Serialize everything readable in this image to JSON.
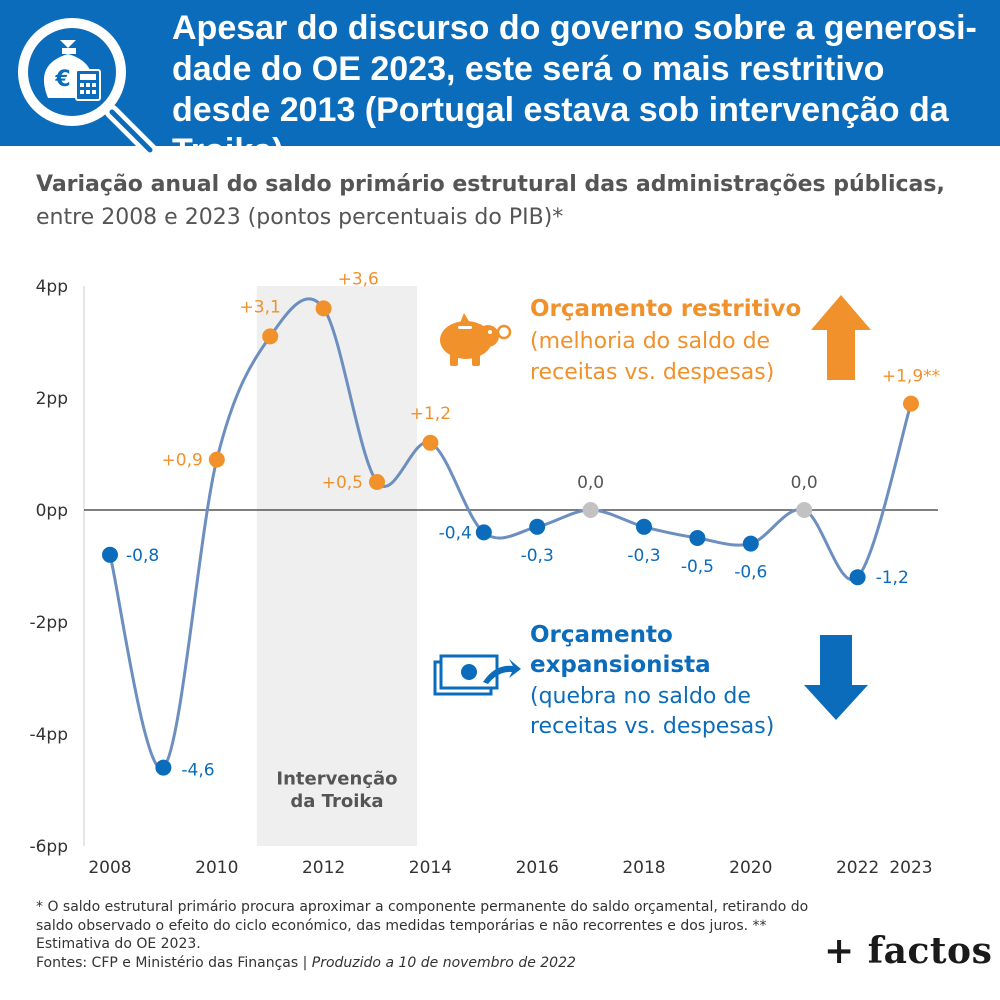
{
  "header": {
    "title": "Apesar do discurso do governo sobre a generosi-dade do OE 2023, este será o mais restritivo desde 2013 (Portugal estava sob intervenção da Troika)"
  },
  "subtitle": {
    "bold": "Variação anual do saldo primário estrutural das administrações públicas,",
    "regular": "entre 2008 e 2023 (pontos percentuais do PIB)*"
  },
  "chart_data": {
    "type": "line",
    "x": [
      2008,
      2009,
      2010,
      2011,
      2012,
      2013,
      2014,
      2015,
      2016,
      2017,
      2018,
      2019,
      2020,
      2021,
      2022,
      2023
    ],
    "series": [
      {
        "values": [
          -0.8,
          -4.6,
          0.9,
          3.1,
          3.6,
          0.5,
          1.2,
          -0.4,
          -0.3,
          0.0,
          -0.3,
          -0.5,
          -0.6,
          0.0,
          -1.2,
          1.9
        ]
      }
    ],
    "data_labels": [
      "-0,8",
      "-4,6",
      "+0,9",
      "+3,1",
      "+3,6",
      "+0,5",
      "+1,2",
      "-0,4",
      "-0,3",
      "0,0",
      "-0,3",
      "-0,5",
      "-0,6",
      "0,0",
      "-1,2",
      "+1,9**"
    ],
    "x_tick_labels": [
      {
        "x": 2008,
        "label": "2008"
      },
      {
        "x": 2010,
        "label": "2010"
      },
      {
        "x": 2012,
        "label": "2012"
      },
      {
        "x": 2014,
        "label": "2014"
      },
      {
        "x": 2016,
        "label": "2016"
      },
      {
        "x": 2018,
        "label": "2018"
      },
      {
        "x": 2020,
        "label": "2020"
      },
      {
        "x": 2022,
        "label": "2022"
      },
      {
        "x": 2023,
        "label": "2023"
      }
    ],
    "y_ticks": [
      {
        "value": 4,
        "label": "4pp"
      },
      {
        "value": 2,
        "label": "2pp"
      },
      {
        "value": 0,
        "label": "0pp"
      },
      {
        "value": -2,
        "label": "-2pp"
      },
      {
        "value": -4,
        "label": "-4pp"
      },
      {
        "value": -6,
        "label": "-6pp"
      }
    ],
    "xlim": [
      2008,
      2023
    ],
    "ylim": [
      -6,
      4
    ],
    "shaded_period": {
      "start": 2010.75,
      "end": 2013.75,
      "label_line1": "Intervenção",
      "label_line2": "da Troika"
    },
    "colors": {
      "positive": "#f0912b",
      "negative": "#0b6cbb",
      "zero": "#c2c2c2",
      "line": "#6c8fbf",
      "shade": "#efefef"
    },
    "grid": false
  },
  "callouts": {
    "restrictive": {
      "title": "Orçamento restritivo",
      "line2": "(melhoria do saldo de",
      "line3": "receitas vs. despesas)",
      "icon": "piggy-bank-icon",
      "arrow": "arrow-up-icon"
    },
    "expansionary": {
      "title1": "Orçamento",
      "title2": "expansionista",
      "line3": "(quebra no saldo de",
      "line4": "receitas vs. despesas)",
      "icon": "money-out-icon",
      "arrow": "arrow-down-icon"
    }
  },
  "footnote": {
    "note": "* O saldo estrutural primário procura aproximar a componente permanente do saldo orçamental, retirando do saldo observado o efeito do ciclo económico, das medidas temporárias e não recorrentes e dos juros. ** Estimativa do OE 2023.",
    "sources": "Fontes: CFP e Ministério das Finanças | ",
    "produced": "Produzido a 10 de novembro de 2022"
  },
  "brand": {
    "name": "+ factos"
  },
  "header_icon": "money-bag-magnifier-icon"
}
